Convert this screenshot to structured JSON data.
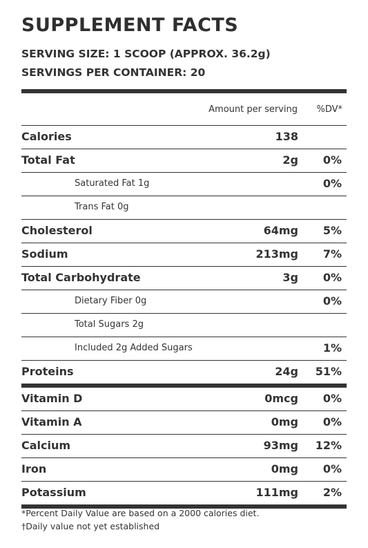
{
  "title": "SUPPLEMENT FACTS",
  "serving_size": "SERVING SIZE: 1 SCOOP (APPROX. 36.2g)",
  "servings_per_container": "SERVINGS PER CONTAINER: 20",
  "header": {
    "amount_label": "Amount per serving",
    "dv_label": "%DV*"
  },
  "rows": [
    {
      "label": "Calories",
      "amount": "138",
      "dv": ""
    },
    {
      "label": "Total Fat",
      "amount": "2g",
      "dv": "0%"
    },
    {
      "label": "Saturated Fat 1g",
      "amount": "",
      "dv": "0%"
    },
    {
      "label": "Trans Fat 0g",
      "amount": "",
      "dv": ""
    },
    {
      "label": "Cholesterol",
      "amount": "64mg",
      "dv": "5%"
    },
    {
      "label": "Sodium",
      "amount": "213mg",
      "dv": "7%"
    },
    {
      "label": "Total Carbohydrate",
      "amount": "3g",
      "dv": "0%"
    },
    {
      "label": "Dietary Fiber 0g",
      "amount": "",
      "dv": "0%"
    },
    {
      "label": "Total Sugars 2g",
      "amount": "",
      "dv": ""
    },
    {
      "label": "Included 2g Added Sugars",
      "amount": "",
      "dv": "1%"
    },
    {
      "label": "Proteins",
      "amount": "24g",
      "dv": "51%"
    },
    {
      "label": "Vitamin D",
      "amount": "0mcg",
      "dv": "0%"
    },
    {
      "label": "Vitamin A",
      "amount": "0mg",
      "dv": "0%"
    },
    {
      "label": "Calcium",
      "amount": "93mg",
      "dv": "12%"
    },
    {
      "label": "Iron",
      "amount": "0mg",
      "dv": "0%"
    },
    {
      "label": "Potassium",
      "amount": "111mg",
      "dv": "2%"
    }
  ],
  "footnotes": [
    "*Percent Daily Value are based on a 2000 calories diet.",
    "†Daily value not yet established"
  ]
}
